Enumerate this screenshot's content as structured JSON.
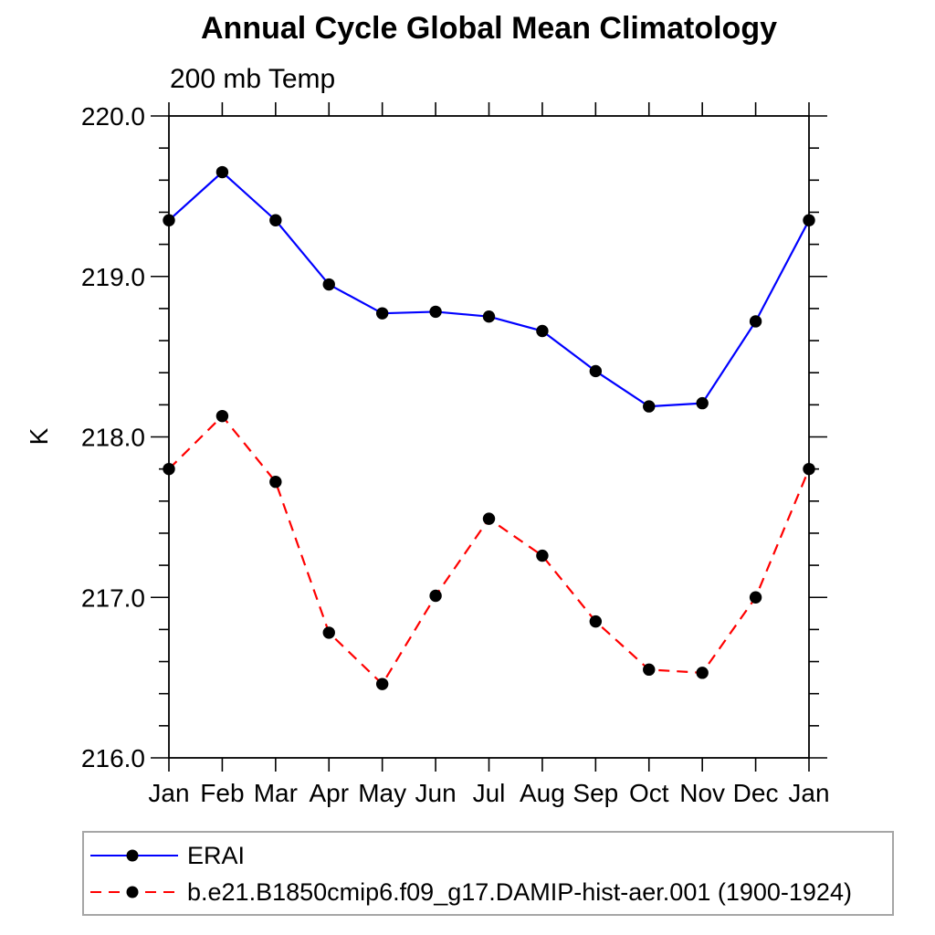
{
  "page": {
    "background": "#ffffff"
  },
  "chart_data": {
    "type": "line",
    "title": "Annual Cycle Global Mean Climatology",
    "subtitle": "200 mb Temp",
    "ylabel": "K",
    "categories": [
      "Jan",
      "Feb",
      "Mar",
      "Apr",
      "May",
      "Jun",
      "Jul",
      "Aug",
      "Sep",
      "Oct",
      "Nov",
      "Dec",
      "Jan"
    ],
    "ylim": [
      216.0,
      220.0
    ],
    "ytick_major": 1.0,
    "ytick_minor": 0.2,
    "ytick_labels": [
      "216.0",
      "217.0",
      "218.0",
      "219.0",
      "220.0"
    ],
    "grid": false,
    "legend_position": "bottom-left-box",
    "axis_color": "#000000",
    "marker": "filled-circle",
    "marker_color": "#000000",
    "series": [
      {
        "name": "ERAI",
        "color": "#0000ff",
        "line_style": "solid",
        "values": [
          219.35,
          219.65,
          219.35,
          218.95,
          218.77,
          218.78,
          218.75,
          218.66,
          218.41,
          218.19,
          218.21,
          218.72,
          219.35
        ]
      },
      {
        "name": "b.e21.B1850cmip6.f09_g17.DAMIP-hist-aer.001 (1900-1924)",
        "color": "#ff0000",
        "line_style": "dashed",
        "values": [
          217.8,
          218.13,
          217.72,
          216.78,
          216.46,
          217.01,
          217.49,
          217.26,
          216.85,
          216.55,
          216.53,
          217.0,
          217.8
        ]
      }
    ]
  }
}
